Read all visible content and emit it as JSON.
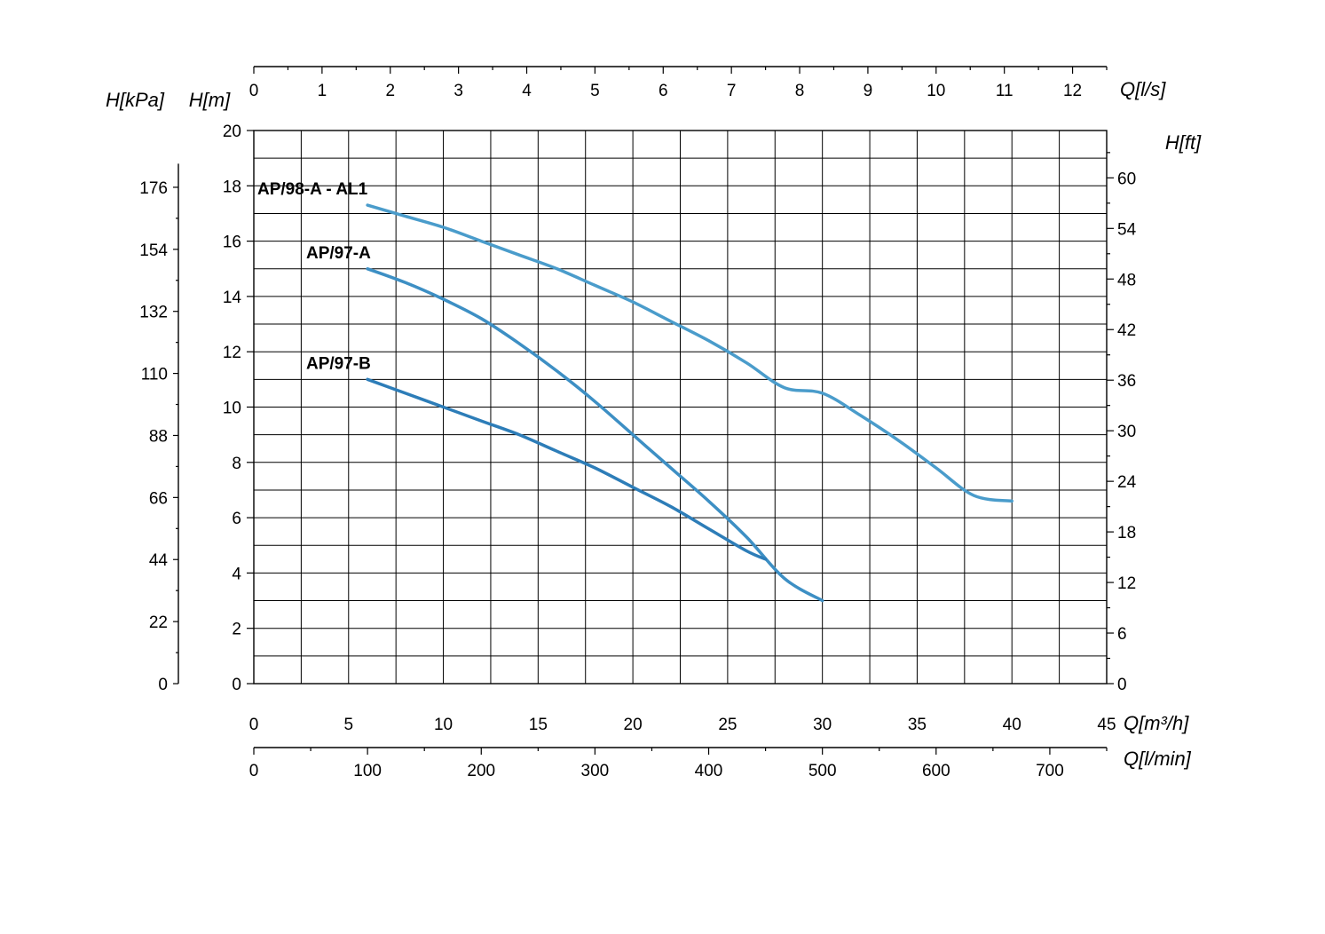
{
  "chart_data": {
    "type": "line",
    "grid": true,
    "x_primary": {
      "label": "Q[m³/h]",
      "range": [
        0,
        45
      ],
      "ticks": [
        "0",
        "5",
        "10",
        "15",
        "20",
        "25",
        "30",
        "35",
        "40",
        "45"
      ]
    },
    "x_top": {
      "label": "Q[l/s]",
      "range": [
        0,
        12.5
      ],
      "ticks": [
        "0",
        "1",
        "2",
        "3",
        "4",
        "5",
        "6",
        "7",
        "8",
        "9",
        "10",
        "11",
        "12"
      ]
    },
    "x_bottom": {
      "label": "Q[l/min]",
      "range": [
        0,
        750
      ],
      "ticks": [
        "0",
        "100",
        "200",
        "300",
        "400",
        "500",
        "600",
        "700"
      ]
    },
    "y_primary": {
      "label": "H[m]",
      "range": [
        0,
        20
      ],
      "ticks": [
        "0",
        "2",
        "4",
        "6",
        "8",
        "10",
        "12",
        "14",
        "16",
        "18",
        "20"
      ]
    },
    "y_kpa": {
      "label": "H[kPa]",
      "ticks": [
        "0",
        "22",
        "44",
        "66",
        "88",
        "110",
        "132",
        "154",
        "176"
      ]
    },
    "y_ft": {
      "label": "H[ft]",
      "ticks": [
        "0",
        "6",
        "12",
        "18",
        "24",
        "30",
        "36",
        "42",
        "48",
        "54",
        "60"
      ]
    },
    "series": [
      {
        "name": "AP/98-A - AL1",
        "color": "#4a9ccb",
        "x": [
          6,
          8,
          10,
          12,
          14,
          16,
          18,
          20,
          22,
          24,
          26,
          28,
          30,
          32,
          34,
          36,
          38,
          40
        ],
        "y": [
          17.3,
          16.9,
          16.5,
          16.0,
          15.5,
          15.0,
          14.4,
          13.8,
          13.1,
          12.4,
          11.6,
          10.7,
          10.5,
          9.7,
          8.8,
          7.8,
          6.8,
          6.6
        ]
      },
      {
        "name": "AP/97-A",
        "color": "#3d8fc4",
        "x": [
          6,
          8,
          10,
          12,
          14,
          16,
          18,
          20,
          22,
          24,
          26,
          28,
          30
        ],
        "y": [
          15.0,
          14.5,
          13.9,
          13.2,
          12.3,
          11.3,
          10.2,
          9.0,
          7.8,
          6.6,
          5.3,
          3.8,
          3.0
        ]
      },
      {
        "name": "AP/97-B",
        "color": "#2d7db8",
        "x": [
          6,
          8,
          10,
          12,
          14,
          16,
          18,
          20,
          22,
          24,
          26,
          27
        ],
        "y": [
          11.0,
          10.5,
          10.0,
          9.5,
          9.0,
          8.4,
          7.8,
          7.1,
          6.4,
          5.6,
          4.8,
          4.5
        ]
      }
    ]
  }
}
